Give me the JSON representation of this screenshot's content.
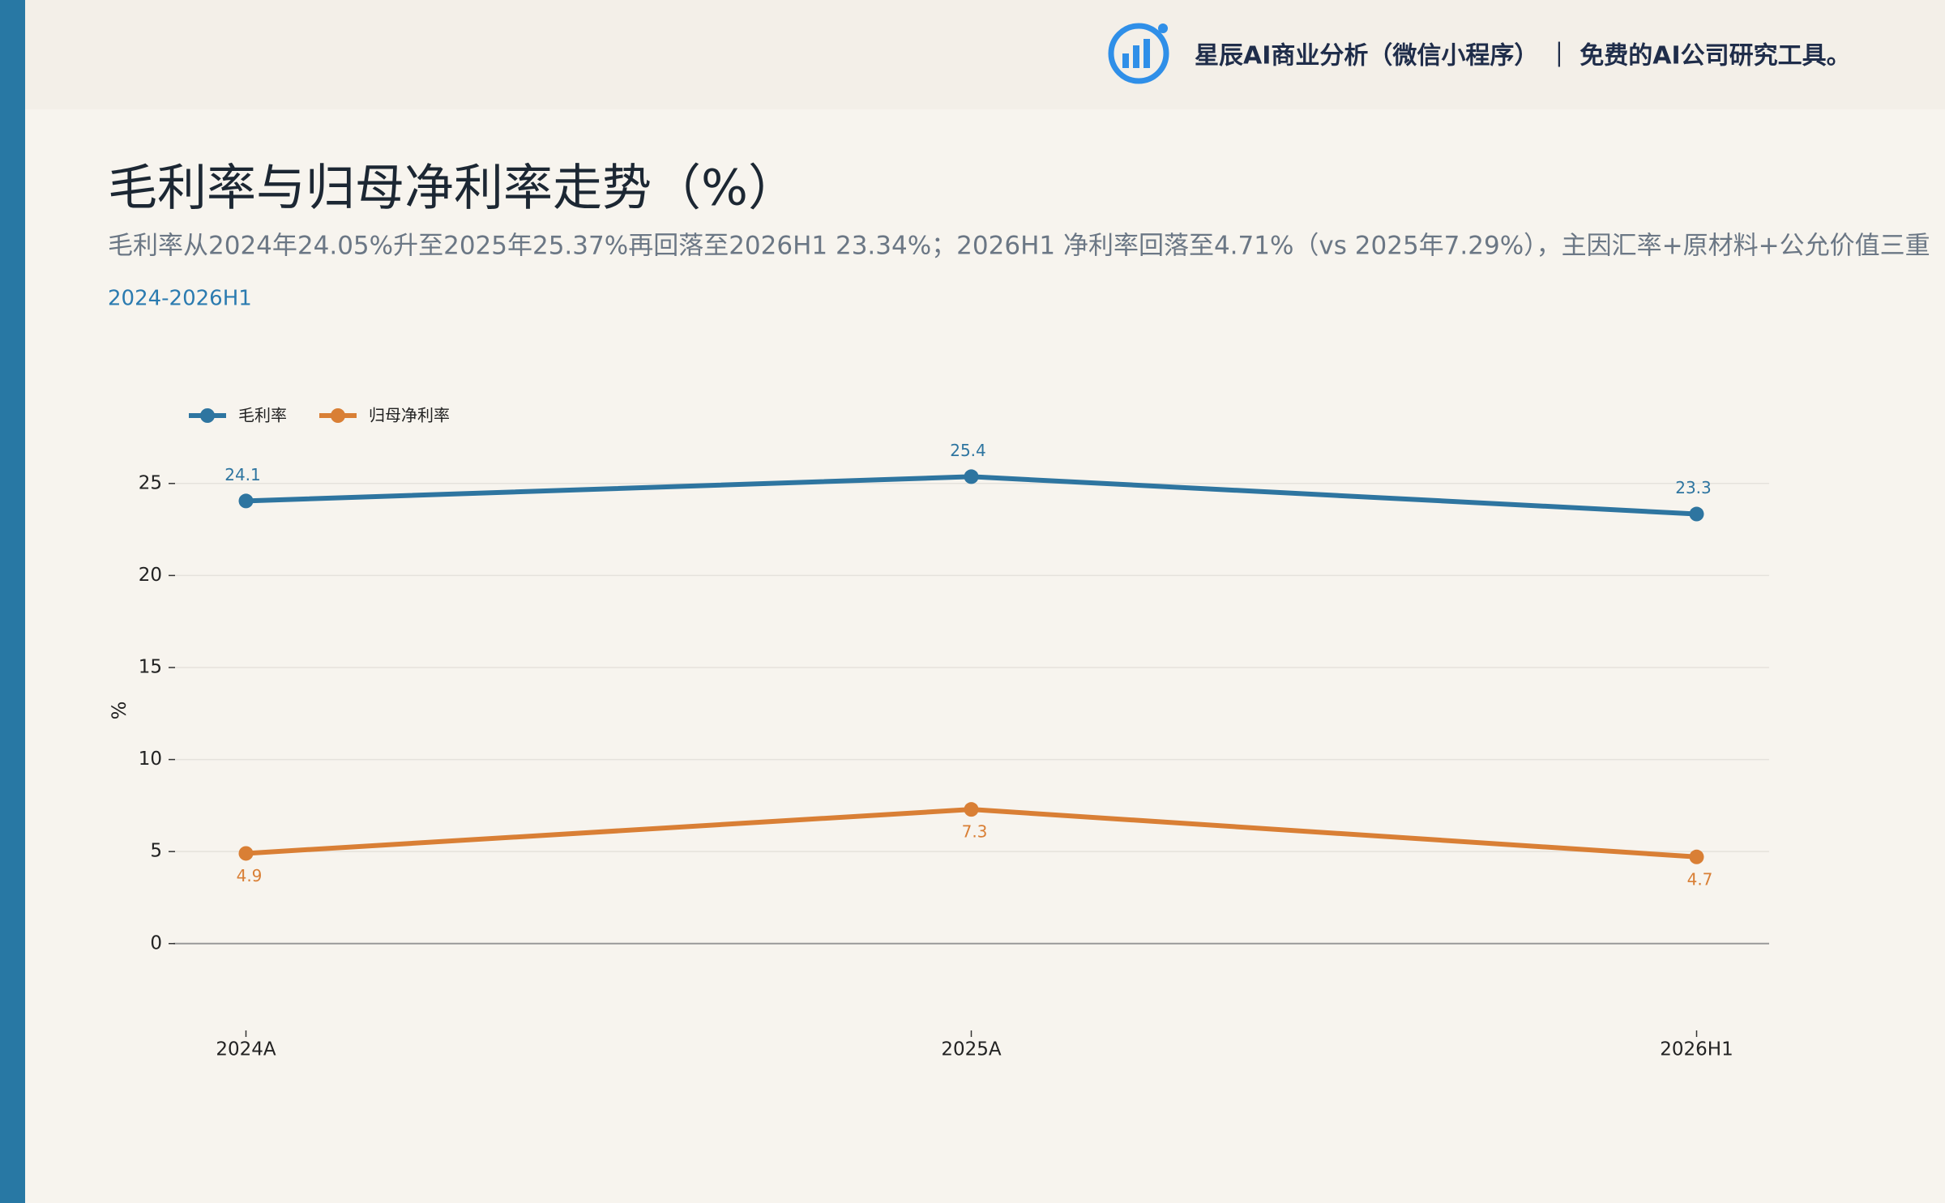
{
  "header": {
    "brand": "星辰AI商业分析（微信小程序） ｜ 免费的AI公司研究工具。"
  },
  "chart_data": {
    "type": "line",
    "title": "毛利率与归母净利率走势（%）",
    "subtitle": "毛利率从2024年24.05%升至2025年25.37%再回落至2026H1 23.34%；2026H1 净利率回落至4.71%（vs 2025年7.29%），主因汇率+原材料+公允价值三重",
    "period": "2024-2026H1",
    "y_label": "%",
    "categories": [
      "2024A",
      "2025A",
      "2026H1"
    ],
    "series": [
      {
        "name": "毛利率",
        "color": "#2e75a0",
        "values": [
          24.05,
          25.37,
          23.34
        ],
        "value_labels": [
          "24.1",
          "25.4",
          "23.3"
        ]
      },
      {
        "name": "归母净利率",
        "color": "#d97f35",
        "values": [
          4.9,
          7.29,
          4.71
        ],
        "value_labels": [
          "4.9",
          "7.3",
          "4.7"
        ]
      }
    ],
    "ylim": [
      -4.5,
      27.5
    ],
    "yticks": [
      0,
      5,
      10,
      15,
      20,
      25
    ],
    "grid": true,
    "legend": "upper left"
  }
}
